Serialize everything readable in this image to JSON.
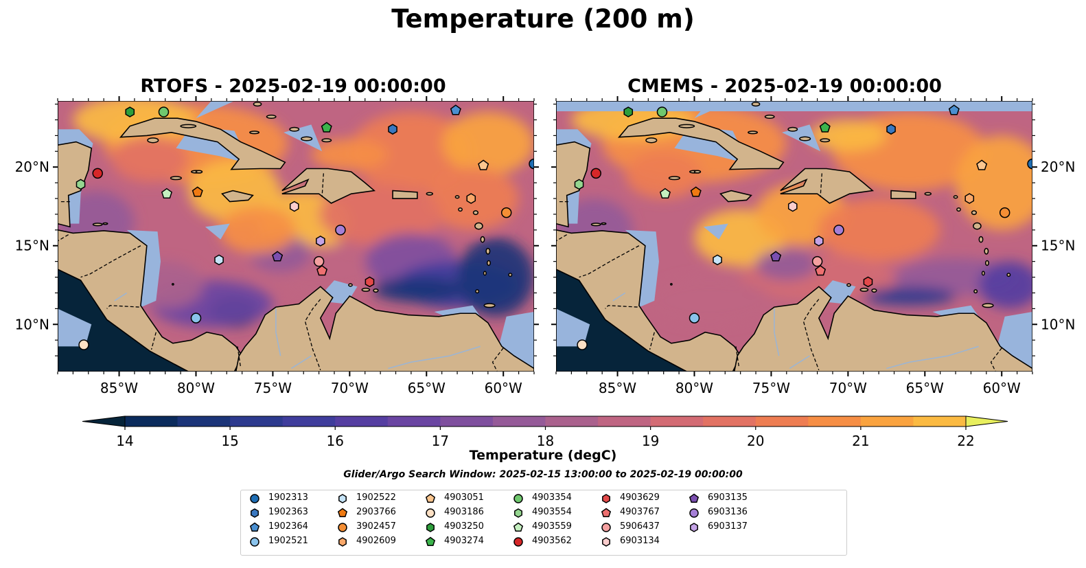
{
  "figure": {
    "suptitle": "Temperature (200 m)",
    "search_window": "Glider/Argo Search Window: 2025-02-15 13:00:00 to 2025-02-19 00:00:00"
  },
  "panels": [
    {
      "title": "RTOFS - 2025-02-19 00:00:00",
      "model": "RTOFS"
    },
    {
      "title": "CMEMS - 2025-02-19 00:00:00",
      "model": "CMEMS"
    }
  ],
  "map_extent": {
    "lon": [
      -89.0,
      -58.0
    ],
    "lat": [
      7.0,
      24.2
    ]
  },
  "axes": {
    "lon_ticks": [
      -85,
      -80,
      -75,
      -70,
      -65,
      -60
    ],
    "lon_tick_labels": [
      "85°W",
      "80°W",
      "75°W",
      "70°W",
      "65°W",
      "60°W"
    ],
    "lat_ticks": [
      10,
      15,
      20
    ],
    "lat_tick_labels": [
      "10°N",
      "15°N",
      "20°N"
    ]
  },
  "colorbar": {
    "label": "Temperature (degC)",
    "range": [
      14,
      22
    ],
    "step": 0.5,
    "ticks": [
      14,
      15,
      16,
      17,
      18,
      19,
      20,
      21,
      22
    ],
    "tick_labels": [
      "14",
      "15",
      "16",
      "17",
      "18",
      "19",
      "20",
      "21",
      "22"
    ],
    "extend": "both",
    "colormap": "thermal",
    "colors": [
      "#06243a",
      "#0b2b5c",
      "#1b3478",
      "#2d3a8e",
      "#3f3d9c",
      "#553ea1",
      "#6a45a2",
      "#7f4f9e",
      "#955a98",
      "#aa618d",
      "#bf6582",
      "#d36b74",
      "#e27263",
      "#ee7d52",
      "#f68e45",
      "#faa33f",
      "#fbba42",
      "#f7d14d",
      "#e8ef5e"
    ]
  },
  "colors": {
    "land": "#d2b48c",
    "shallow_water": "#98b4dc",
    "coastline": "#000000"
  },
  "floats": [
    {
      "id": "1902313",
      "lon": -58.0,
      "lat": 20.2,
      "marker": "circle",
      "color": "#1f6eb4"
    },
    {
      "id": "1902363",
      "lon": -67.2,
      "lat": 22.4,
      "marker": "hexagon",
      "color": "#3a78c0"
    },
    {
      "id": "1902364",
      "lon": -63.1,
      "lat": 23.6,
      "marker": "pentagon",
      "color": "#4a8fd0"
    },
    {
      "id": "1902521",
      "lon": -80.0,
      "lat": 10.4,
      "marker": "circle",
      "color": "#8ac3ec"
    },
    {
      "id": "1902522",
      "lon": -78.5,
      "lat": 14.1,
      "marker": "hexagon",
      "color": "#c6e4f8"
    },
    {
      "id": "2903766",
      "lon": -79.9,
      "lat": 18.4,
      "marker": "pentagon",
      "color": "#f07a12"
    },
    {
      "id": "3902457",
      "lon": -59.8,
      "lat": 17.1,
      "marker": "circle",
      "color": "#f58f35"
    },
    {
      "id": "4902609",
      "lon": -62.1,
      "lat": 18.0,
      "marker": "hexagon",
      "color": "#f9a86a"
    },
    {
      "id": "4903051",
      "lon": -61.3,
      "lat": 20.1,
      "marker": "pentagon",
      "color": "#fbc68f"
    },
    {
      "id": "4903186",
      "lon": -87.3,
      "lat": 8.7,
      "marker": "circle",
      "color": "#fde0c4"
    },
    {
      "id": "4903250",
      "lon": -84.3,
      "lat": 23.5,
      "marker": "hexagon",
      "color": "#2e9e3c"
    },
    {
      "id": "4903274",
      "lon": -71.5,
      "lat": 22.5,
      "marker": "pentagon",
      "color": "#3cb44c"
    },
    {
      "id": "4903354",
      "lon": -82.1,
      "lat": 23.5,
      "marker": "circle",
      "color": "#70c86e"
    },
    {
      "id": "4903554",
      "lon": -87.5,
      "lat": 18.9,
      "marker": "hexagon",
      "color": "#95d690"
    },
    {
      "id": "4903559",
      "lon": -81.9,
      "lat": 18.3,
      "marker": "pentagon",
      "color": "#c5f0c0"
    },
    {
      "id": "4903562",
      "lon": -86.4,
      "lat": 19.6,
      "marker": "circle",
      "color": "#d62728"
    },
    {
      "id": "4903629",
      "lon": -68.7,
      "lat": 12.7,
      "marker": "hexagon",
      "color": "#e34a4a"
    },
    {
      "id": "4903767",
      "lon": -71.8,
      "lat": 13.4,
      "marker": "pentagon",
      "color": "#ee7070"
    },
    {
      "id": "5906437",
      "lon": -72.0,
      "lat": 14.0,
      "marker": "circle",
      "color": "#f4a0a0"
    },
    {
      "id": "6903134",
      "lon": -73.6,
      "lat": 17.5,
      "marker": "hexagon",
      "color": "#fbcdcd"
    },
    {
      "id": "6903135",
      "lon": -74.7,
      "lat": 14.3,
      "marker": "pentagon",
      "color": "#7b4fb0"
    },
    {
      "id": "6903136",
      "lon": -70.6,
      "lat": 16.0,
      "marker": "circle",
      "color": "#a57fd6"
    },
    {
      "id": "6903137",
      "lon": -71.9,
      "lat": 15.3,
      "marker": "hexagon",
      "color": "#c4a3e6"
    }
  ]
}
